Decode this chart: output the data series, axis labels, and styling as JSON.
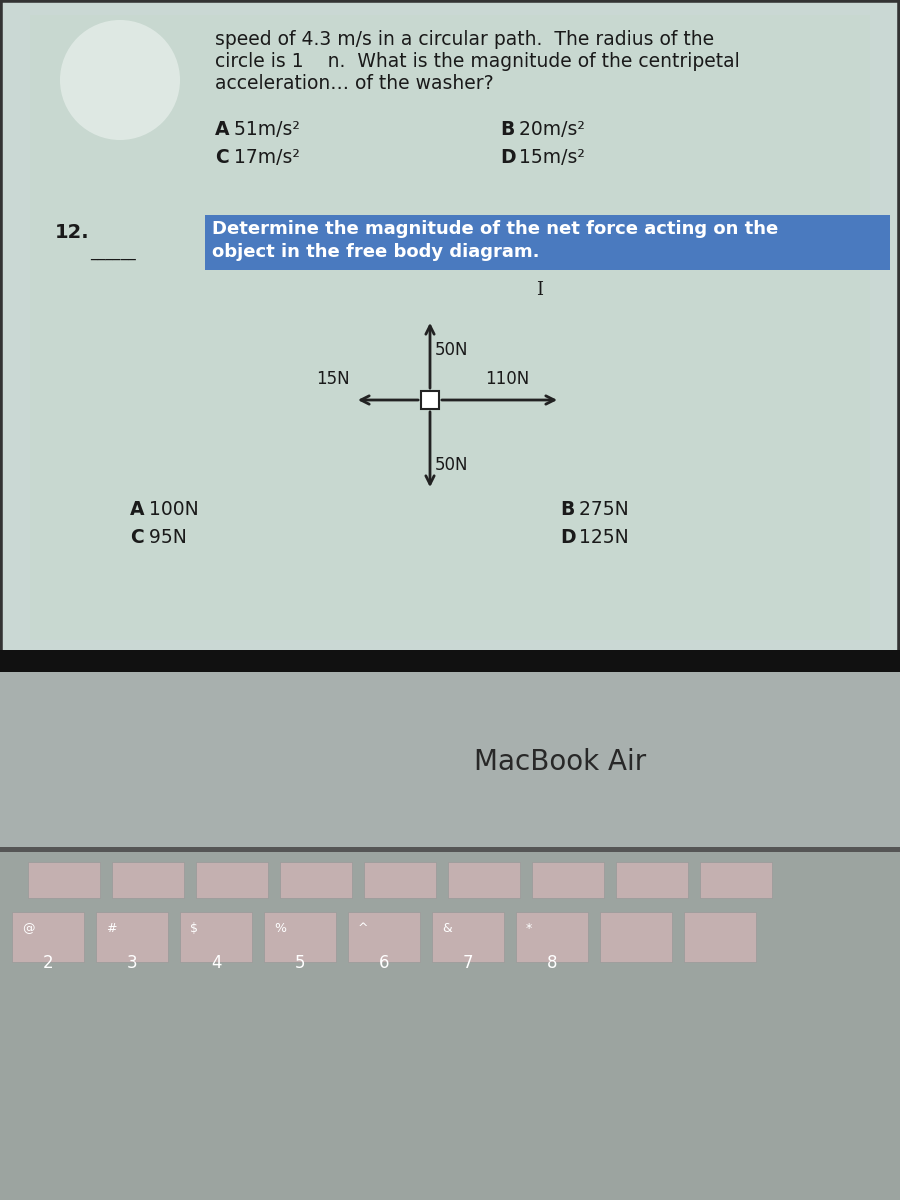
{
  "text_color": "#1a1a1a",
  "highlight_color": "#4a7abf",
  "arrow_color": "#222222",
  "white": "#ffffff",
  "line1": "speed of 4.3 m/s in a circular path.  The radius of the",
  "line2": "circle is 1    n.  What is the magnitude of the centripetal",
  "line3": "acceleration… of the washer?",
  "q1_A": " 51m/s²",
  "q1_B": " 20m/s²",
  "q1_C": " 17m/s²",
  "q1_D": " 15m/s²",
  "q12_num": "12.",
  "q12_text_line1": "Determine the magnitude of the net force acting on the",
  "q12_text_line2": "object in the free body diagram.",
  "force_up": "50N",
  "force_down": "50N",
  "force_left": "15N",
  "force_right": "110N",
  "q2_A": " 100N",
  "q2_B": " 275N",
  "q2_C": " 95N",
  "q2_D": " 125N",
  "macbook_label": "MacBook Air",
  "screen_bg": "#cad8d4",
  "laptop_body_color": "#a8b0ae",
  "keyboard_bg": "#9ca4a0",
  "key_color": "#c4b0b0",
  "black_bar_color": "#111111",
  "bezel_color": "#333333"
}
